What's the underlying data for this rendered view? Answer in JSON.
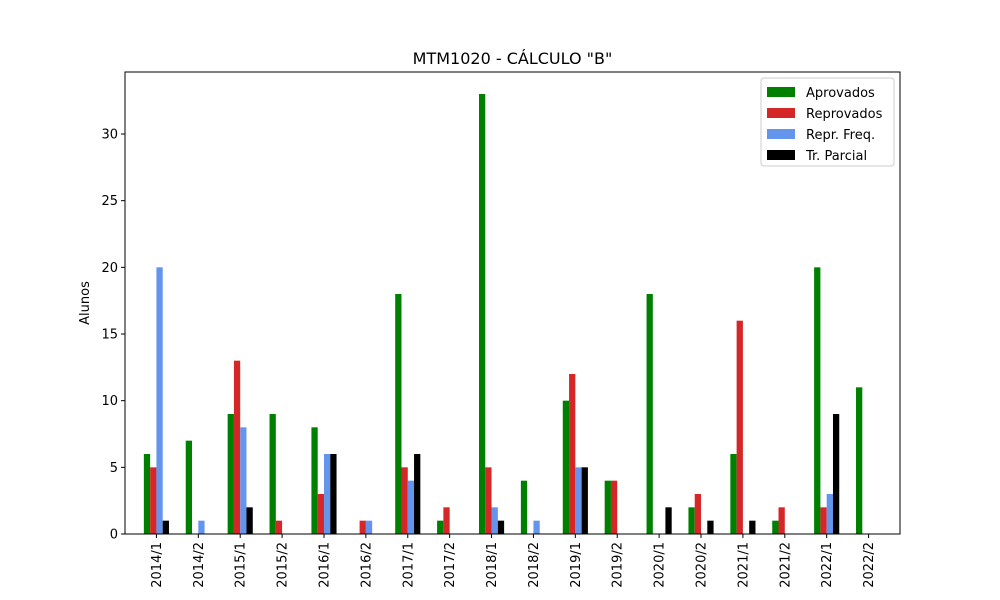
{
  "chart_data": {
    "type": "bar",
    "title": "MTM1020 - CÁLCULO \"B\"",
    "xlabel": "",
    "ylabel": "Alunos",
    "ylim": [
      0,
      34.65
    ],
    "yticks": [
      0,
      5,
      10,
      15,
      20,
      25,
      30
    ],
    "grid": false,
    "legend_position": "top-right",
    "categories": [
      "2014/1",
      "2014/2",
      "2015/1",
      "2015/2",
      "2016/1",
      "2016/2",
      "2017/1",
      "2017/2",
      "2018/1",
      "2018/2",
      "2019/1",
      "2019/2",
      "2020/1",
      "2020/2",
      "2021/1",
      "2021/2",
      "2022/1",
      "2022/2"
    ],
    "series": [
      {
        "name": "Aprovados",
        "color": "#008000",
        "values": [
          6,
          7,
          9,
          9,
          8,
          0,
          18,
          1,
          33,
          4,
          10,
          4,
          18,
          2,
          6,
          1,
          20,
          11
        ]
      },
      {
        "name": "Reprovados",
        "color": "#d62728",
        "values": [
          5,
          0,
          13,
          1,
          3,
          1,
          5,
          2,
          5,
          0,
          12,
          4,
          0,
          3,
          16,
          2,
          2,
          0
        ]
      },
      {
        "name": "Repr. Freq.",
        "color": "#6495ed",
        "values": [
          20,
          1,
          8,
          0,
          6,
          1,
          4,
          0,
          2,
          1,
          5,
          0,
          0,
          0,
          0,
          0,
          3,
          0
        ]
      },
      {
        "name": "Tr. Parcial",
        "color": "#000000",
        "values": [
          1,
          0,
          2,
          0,
          6,
          0,
          6,
          0,
          1,
          0,
          5,
          0,
          2,
          1,
          1,
          0,
          9,
          0
        ]
      }
    ]
  }
}
